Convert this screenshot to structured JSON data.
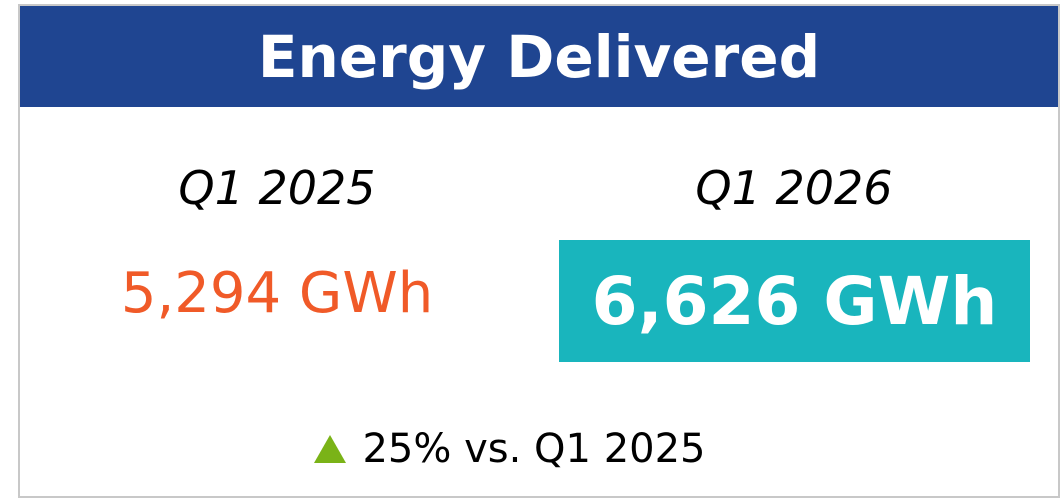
{
  "header": {
    "title": "Energy Delivered"
  },
  "previous": {
    "period": "Q1 2025",
    "value": "5,294 GWh"
  },
  "current": {
    "period": "Q1 2026",
    "value": "6,626 GWh"
  },
  "change": {
    "text": "25% vs. Q1 2025"
  }
}
